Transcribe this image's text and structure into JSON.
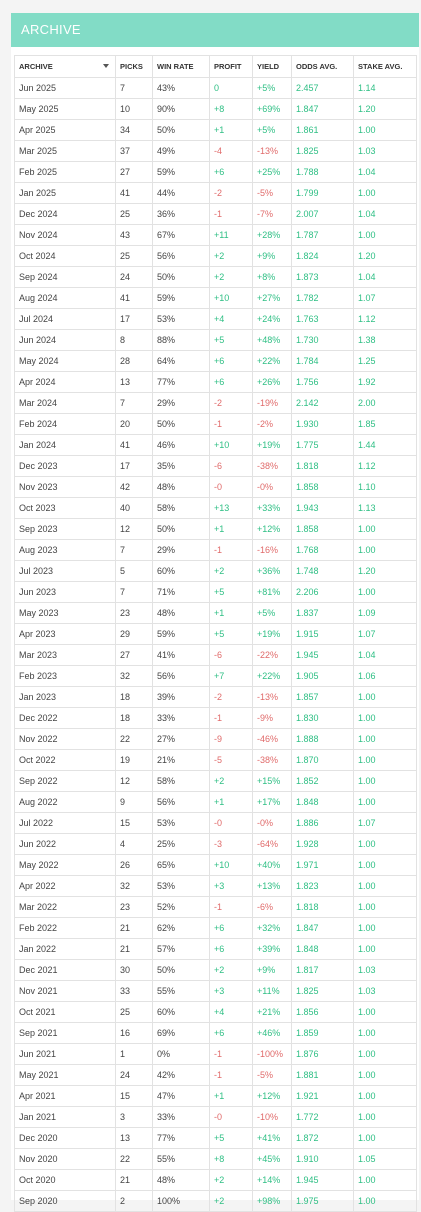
{
  "header": {
    "title": "ARCHIVE"
  },
  "columns": [
    "ARCHIVE",
    "PICKS",
    "WIN RATE",
    "PROFIT",
    "YIELD",
    "ODDS AVG.",
    "STAKE AVG."
  ],
  "rows": [
    [
      "Jun 2025",
      "7",
      "43%",
      "0",
      "+5%",
      "2.457",
      "1.14"
    ],
    [
      "May 2025",
      "10",
      "90%",
      "+8",
      "+69%",
      "1.847",
      "1.20"
    ],
    [
      "Apr 2025",
      "34",
      "50%",
      "+1",
      "+5%",
      "1.861",
      "1.00"
    ],
    [
      "Mar 2025",
      "37",
      "49%",
      "-4",
      "-13%",
      "1.825",
      "1.03"
    ],
    [
      "Feb 2025",
      "27",
      "59%",
      "+6",
      "+25%",
      "1.788",
      "1.04"
    ],
    [
      "Jan 2025",
      "41",
      "44%",
      "-2",
      "-5%",
      "1.799",
      "1.00"
    ],
    [
      "Dec 2024",
      "25",
      "36%",
      "-1",
      "-7%",
      "2.007",
      "1.04"
    ],
    [
      "Nov 2024",
      "43",
      "67%",
      "+11",
      "+28%",
      "1.787",
      "1.00"
    ],
    [
      "Oct 2024",
      "25",
      "56%",
      "+2",
      "+9%",
      "1.824",
      "1.20"
    ],
    [
      "Sep 2024",
      "24",
      "50%",
      "+2",
      "+8%",
      "1.873",
      "1.04"
    ],
    [
      "Aug 2024",
      "41",
      "59%",
      "+10",
      "+27%",
      "1.782",
      "1.07"
    ],
    [
      "Jul 2024",
      "17",
      "53%",
      "+4",
      "+24%",
      "1.763",
      "1.12"
    ],
    [
      "Jun 2024",
      "8",
      "88%",
      "+5",
      "+48%",
      "1.730",
      "1.38"
    ],
    [
      "May 2024",
      "28",
      "64%",
      "+6",
      "+22%",
      "1.784",
      "1.25"
    ],
    [
      "Apr 2024",
      "13",
      "77%",
      "+6",
      "+26%",
      "1.756",
      "1.92"
    ],
    [
      "Mar 2024",
      "7",
      "29%",
      "-2",
      "-19%",
      "2.142",
      "2.00"
    ],
    [
      "Feb 2024",
      "20",
      "50%",
      "-1",
      "-2%",
      "1.930",
      "1.85"
    ],
    [
      "Jan 2024",
      "41",
      "46%",
      "+10",
      "+19%",
      "1.775",
      "1.44"
    ],
    [
      "Dec 2023",
      "17",
      "35%",
      "-6",
      "-38%",
      "1.818",
      "1.12"
    ],
    [
      "Nov 2023",
      "42",
      "48%",
      "-0",
      "-0%",
      "1.858",
      "1.10"
    ],
    [
      "Oct 2023",
      "40",
      "58%",
      "+13",
      "+33%",
      "1.943",
      "1.13"
    ],
    [
      "Sep 2023",
      "12",
      "50%",
      "+1",
      "+12%",
      "1.858",
      "1.00"
    ],
    [
      "Aug 2023",
      "7",
      "29%",
      "-1",
      "-16%",
      "1.768",
      "1.00"
    ],
    [
      "Jul 2023",
      "5",
      "60%",
      "+2",
      "+36%",
      "1.748",
      "1.20"
    ],
    [
      "Jun 2023",
      "7",
      "71%",
      "+5",
      "+81%",
      "2.206",
      "1.00"
    ],
    [
      "May 2023",
      "23",
      "48%",
      "+1",
      "+5%",
      "1.837",
      "1.09"
    ],
    [
      "Apr 2023",
      "29",
      "59%",
      "+5",
      "+19%",
      "1.915",
      "1.07"
    ],
    [
      "Mar 2023",
      "27",
      "41%",
      "-6",
      "-22%",
      "1.945",
      "1.04"
    ],
    [
      "Feb 2023",
      "32",
      "56%",
      "+7",
      "+22%",
      "1.905",
      "1.06"
    ],
    [
      "Jan 2023",
      "18",
      "39%",
      "-2",
      "-13%",
      "1.857",
      "1.00"
    ],
    [
      "Dec 2022",
      "18",
      "33%",
      "-1",
      "-9%",
      "1.830",
      "1.00"
    ],
    [
      "Nov 2022",
      "22",
      "27%",
      "-9",
      "-46%",
      "1.888",
      "1.00"
    ],
    [
      "Oct 2022",
      "19",
      "21%",
      "-5",
      "-38%",
      "1.870",
      "1.00"
    ],
    [
      "Sep 2022",
      "12",
      "58%",
      "+2",
      "+15%",
      "1.852",
      "1.00"
    ],
    [
      "Aug 2022",
      "9",
      "56%",
      "+1",
      "+17%",
      "1.848",
      "1.00"
    ],
    [
      "Jul 2022",
      "15",
      "53%",
      "-0",
      "-0%",
      "1.886",
      "1.07"
    ],
    [
      "Jun 2022",
      "4",
      "25%",
      "-3",
      "-64%",
      "1.928",
      "1.00"
    ],
    [
      "May 2022",
      "26",
      "65%",
      "+10",
      "+40%",
      "1.971",
      "1.00"
    ],
    [
      "Apr 2022",
      "32",
      "53%",
      "+3",
      "+13%",
      "1.823",
      "1.00"
    ],
    [
      "Mar 2022",
      "23",
      "52%",
      "-1",
      "-6%",
      "1.818",
      "1.00"
    ],
    [
      "Feb 2022",
      "21",
      "62%",
      "+6",
      "+32%",
      "1.847",
      "1.00"
    ],
    [
      "Jan 2022",
      "21",
      "57%",
      "+6",
      "+39%",
      "1.848",
      "1.00"
    ],
    [
      "Dec 2021",
      "30",
      "50%",
      "+2",
      "+9%",
      "1.817",
      "1.03"
    ],
    [
      "Nov 2021",
      "33",
      "55%",
      "+3",
      "+11%",
      "1.825",
      "1.03"
    ],
    [
      "Oct 2021",
      "25",
      "60%",
      "+4",
      "+21%",
      "1.856",
      "1.00"
    ],
    [
      "Sep 2021",
      "16",
      "69%",
      "+6",
      "+46%",
      "1.859",
      "1.00"
    ],
    [
      "Jun 2021",
      "1",
      "0%",
      "-1",
      "-100%",
      "1.876",
      "1.00"
    ],
    [
      "May 2021",
      "24",
      "42%",
      "-1",
      "-5%",
      "1.881",
      "1.00"
    ],
    [
      "Apr 2021",
      "15",
      "47%",
      "+1",
      "+12%",
      "1.921",
      "1.00"
    ],
    [
      "Jan 2021",
      "3",
      "33%",
      "-0",
      "-10%",
      "1.772",
      "1.00"
    ],
    [
      "Dec 2020",
      "13",
      "77%",
      "+5",
      "+41%",
      "1.872",
      "1.00"
    ],
    [
      "Nov 2020",
      "22",
      "55%",
      "+8",
      "+45%",
      "1.910",
      "1.05"
    ],
    [
      "Oct 2020",
      "21",
      "48%",
      "+2",
      "+14%",
      "1.945",
      "1.00"
    ],
    [
      "Sep 2020",
      "2",
      "100%",
      "+2",
      "+98%",
      "1.975",
      "1.00"
    ]
  ],
  "colors": {
    "header_bg": "#82dcc6",
    "positive": "#2ebf84",
    "negative": "#e06a6a"
  }
}
